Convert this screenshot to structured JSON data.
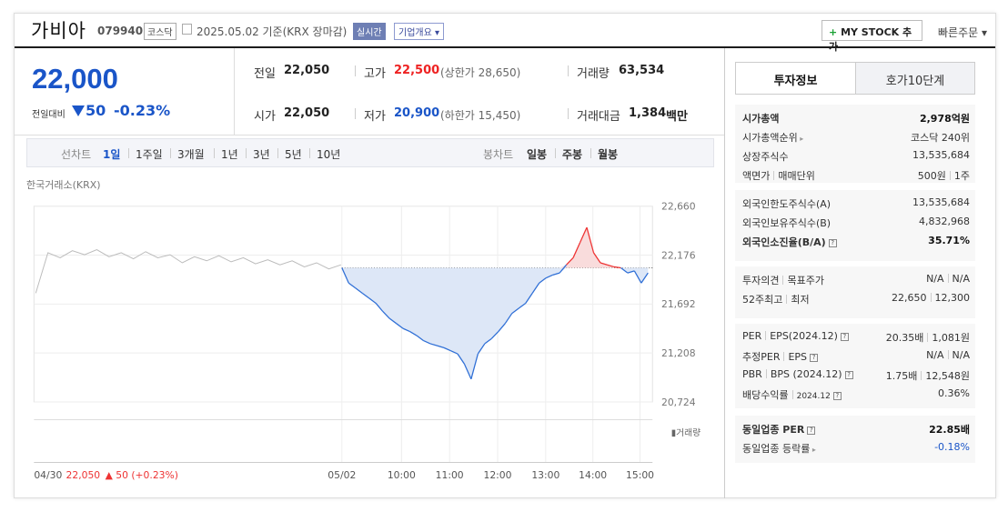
{
  "header": {
    "company_name": "가비아",
    "code": "079940",
    "market": "코스닥",
    "date_text": "2025.05.02 기준(KRX 장마감)",
    "realtime": "실시간",
    "corp_info": "기업개요",
    "my_stock": "MY STOCK 추가",
    "quick_order": "빠른주문"
  },
  "price": {
    "current": "22,000",
    "prev_label": "전일대비",
    "change": "50",
    "change_pct": "-0.23%"
  },
  "stats": {
    "prev_close_label": "전일",
    "prev_close": "22,050",
    "high_label": "고가",
    "high": "22,500",
    "upper_limit": "(상한가 28,650)",
    "volume_label": "거래량",
    "volume": "63,534",
    "open_label": "시가",
    "open": "22,050",
    "low_label": "저가",
    "low": "20,900",
    "lower_limit": "(하한가 15,450)",
    "amount_label": "거래대금",
    "amount": "1,384",
    "amount_unit": "백만"
  },
  "period_bar": {
    "line_label": "선차트",
    "periods": [
      "1일",
      "1주일",
      "3개월",
      "1년",
      "3년",
      "5년",
      "10년"
    ],
    "active_period": "1일",
    "candle_label": "봉차트",
    "candles": [
      "일봉",
      "주봉",
      "월봉"
    ]
  },
  "chart_data": {
    "type": "line",
    "exchange": "한국거래소(KRX)",
    "y_ticks": [
      "22,660",
      "22,176",
      "21,692",
      "21,208",
      "20,724"
    ],
    "ylim": [
      20724,
      22660
    ],
    "x_ticks": [
      "05/02",
      "10:00",
      "11:00",
      "12:00",
      "13:00",
      "14:00",
      "15:00"
    ],
    "reference_price": 22050,
    "volume_legend": "거래량",
    "prev_day_caption": "04/30",
    "prev_day_price": "22,050",
    "prev_day_change": "50 (+0.23%)",
    "prev_day_series": [
      21800,
      22200,
      22150,
      22220,
      22180,
      22230,
      22160,
      22200,
      22140,
      22210,
      22150,
      22180,
      22100,
      22160,
      22120,
      22170,
      22110,
      22150,
      22090,
      22130,
      22080,
      22120,
      22060,
      22100,
      22040,
      22080
    ],
    "today_series": [
      22050,
      21900,
      21850,
      21800,
      21750,
      21700,
      21620,
      21550,
      21500,
      21450,
      21420,
      21380,
      21330,
      21300,
      21280,
      21260,
      21230,
      21200,
      21100,
      20950,
      21200,
      21300,
      21350,
      21420,
      21500,
      21600,
      21650,
      21700,
      21800,
      21900,
      21950,
      21980,
      22000,
      22080,
      22150,
      22300,
      22450,
      22200,
      22100,
      22080,
      22060,
      22050,
      22000,
      22020,
      21900,
      22000
    ]
  },
  "tabs": {
    "invest_info": "투자정보",
    "hoga": "호가10단계"
  },
  "info1": [
    {
      "label": "시가총액",
      "value": "2,978억원",
      "bold": true
    },
    {
      "label": "시가총액순위",
      "value": "코스닥 240위",
      "arrow": true
    },
    {
      "label": "상장주식수",
      "value": "13,535,684"
    },
    {
      "label": "액면가",
      "label2": "매매단위",
      "value": "500원",
      "value2": "1주"
    }
  ],
  "info2": [
    {
      "label": "외국인한도주식수(A)",
      "value": "13,535,684"
    },
    {
      "label": "외국인보유주식수(B)",
      "value": "4,832,968"
    },
    {
      "label": "외국인소진율(B/A)",
      "value": "35.71%",
      "bold": true,
      "help": true
    }
  ],
  "info3": [
    {
      "label": "투자의견",
      "label2": "목표주가",
      "value": "N/A",
      "value2": "N/A"
    },
    {
      "label": "52주최고",
      "label2": "최저",
      "value": "22,650",
      "value2": "12,300"
    }
  ],
  "info4": [
    {
      "label": "PER",
      "label2": "EPS(2024.12)",
      "value": "20.35배",
      "value2": "1,081원",
      "help": true
    },
    {
      "label": "추정PER",
      "label2": "EPS",
      "value": "N/A",
      "value2": "N/A",
      "help": true
    },
    {
      "label": "PBR",
      "label2": "BPS (2024.12)",
      "value": "1.75배",
      "value2": "12,548원",
      "help": true
    },
    {
      "label": "배당수익률",
      "label2": "2024.12",
      "value": "0.36%",
      "help": true
    }
  ],
  "info5": [
    {
      "label": "동일업종 PER",
      "value": "22.85배",
      "bold": true,
      "help": true
    },
    {
      "label": "동일업종 등락률",
      "value": "-0.18%",
      "arrow": true,
      "blue": true
    }
  ]
}
